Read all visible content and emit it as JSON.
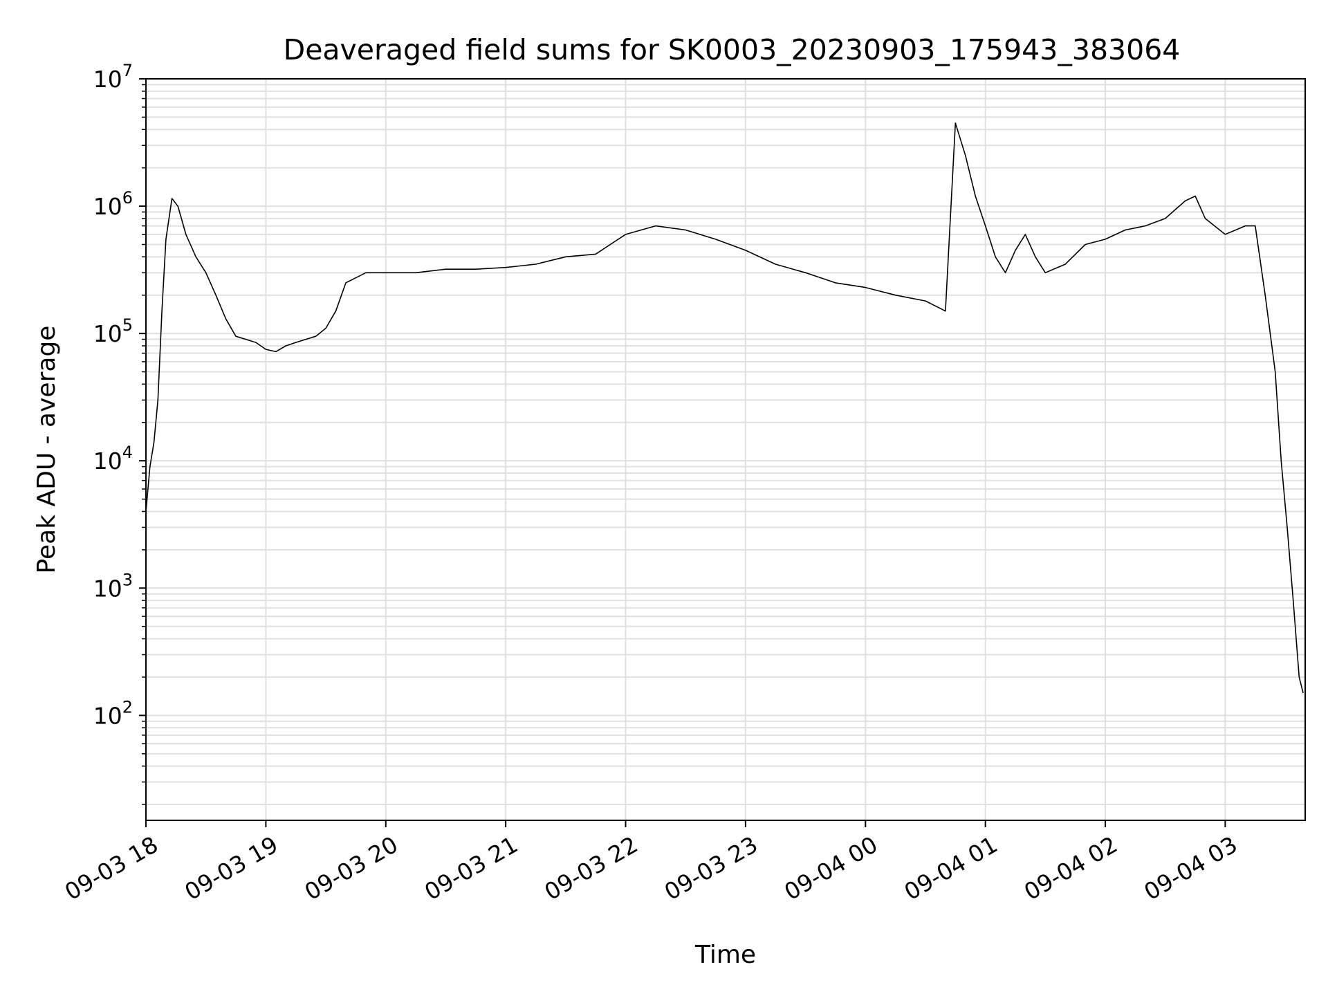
{
  "chart_data": {
    "type": "line",
    "title": "Deaveraged field sums for SK0003_20230903_175943_383064",
    "xlabel": "Time",
    "ylabel": "Peak ADU - average",
    "yscale": "log",
    "ylim": [
      15,
      10000000
    ],
    "xlim": [
      "2023-09-03 18:00",
      "2023-09-04 03:40"
    ],
    "grid": true,
    "line_color": "#000000",
    "grid_color": "#e0e0e0",
    "x_ticks": [
      {
        "label": "09-03 18",
        "value": "2023-09-03 18:00"
      },
      {
        "label": "09-03 19",
        "value": "2023-09-03 19:00"
      },
      {
        "label": "09-03 20",
        "value": "2023-09-03 20:00"
      },
      {
        "label": "09-03 21",
        "value": "2023-09-03 21:00"
      },
      {
        "label": "09-03 22",
        "value": "2023-09-03 22:00"
      },
      {
        "label": "09-03 23",
        "value": "2023-09-03 23:00"
      },
      {
        "label": "09-04 00",
        "value": "2023-09-04 00:00"
      },
      {
        "label": "09-04 01",
        "value": "2023-09-04 01:00"
      },
      {
        "label": "09-04 02",
        "value": "2023-09-04 02:00"
      },
      {
        "label": "09-04 03",
        "value": "2023-09-04 03:00"
      }
    ],
    "y_ticks": [
      {
        "base": "10",
        "exp": "2",
        "value": 100
      },
      {
        "base": "10",
        "exp": "3",
        "value": 1000
      },
      {
        "base": "10",
        "exp": "4",
        "value": 10000
      },
      {
        "base": "10",
        "exp": "5",
        "value": 100000
      },
      {
        "base": "10",
        "exp": "6",
        "value": 1000000
      },
      {
        "base": "10",
        "exp": "7",
        "value": 10000000
      }
    ],
    "series": [
      {
        "points": [
          [
            "2023-09-03 18:00",
            4000
          ],
          [
            "2023-09-03 18:02",
            9000
          ],
          [
            "2023-09-03 18:04",
            14000
          ],
          [
            "2023-09-03 18:06",
            30000
          ],
          [
            "2023-09-03 18:08",
            150000
          ],
          [
            "2023-09-03 18:10",
            550000
          ],
          [
            "2023-09-03 18:13",
            1150000
          ],
          [
            "2023-09-03 18:16",
            1000000
          ],
          [
            "2023-09-03 18:20",
            600000
          ],
          [
            "2023-09-03 18:25",
            400000
          ],
          [
            "2023-09-03 18:30",
            300000
          ],
          [
            "2023-09-03 18:35",
            200000
          ],
          [
            "2023-09-03 18:40",
            130000
          ],
          [
            "2023-09-03 18:45",
            95000
          ],
          [
            "2023-09-03 18:50",
            90000
          ],
          [
            "2023-09-03 18:55",
            85000
          ],
          [
            "2023-09-03 19:00",
            75000
          ],
          [
            "2023-09-03 19:05",
            72000
          ],
          [
            "2023-09-03 19:10",
            80000
          ],
          [
            "2023-09-03 19:15",
            85000
          ],
          [
            "2023-09-03 19:20",
            90000
          ],
          [
            "2023-09-03 19:25",
            95000
          ],
          [
            "2023-09-03 19:30",
            110000
          ],
          [
            "2023-09-03 19:35",
            150000
          ],
          [
            "2023-09-03 19:40",
            250000
          ],
          [
            "2023-09-03 19:50",
            300000
          ],
          [
            "2023-09-03 20:00",
            300000
          ],
          [
            "2023-09-03 20:15",
            300000
          ],
          [
            "2023-09-03 20:30",
            320000
          ],
          [
            "2023-09-03 20:45",
            320000
          ],
          [
            "2023-09-03 21:00",
            330000
          ],
          [
            "2023-09-03 21:15",
            350000
          ],
          [
            "2023-09-03 21:30",
            400000
          ],
          [
            "2023-09-03 21:45",
            420000
          ],
          [
            "2023-09-03 22:00",
            600000
          ],
          [
            "2023-09-03 22:15",
            700000
          ],
          [
            "2023-09-03 22:30",
            650000
          ],
          [
            "2023-09-03 22:45",
            550000
          ],
          [
            "2023-09-03 23:00",
            450000
          ],
          [
            "2023-09-03 23:15",
            350000
          ],
          [
            "2023-09-03 23:30",
            300000
          ],
          [
            "2023-09-03 23:45",
            250000
          ],
          [
            "2023-09-04 00:00",
            230000
          ],
          [
            "2023-09-04 00:15",
            200000
          ],
          [
            "2023-09-04 00:30",
            180000
          ],
          [
            "2023-09-04 00:40",
            150000
          ],
          [
            "2023-09-04 00:45",
            4500000
          ],
          [
            "2023-09-04 00:50",
            2500000
          ],
          [
            "2023-09-04 00:55",
            1200000
          ],
          [
            "2023-09-04 01:00",
            700000
          ],
          [
            "2023-09-04 01:05",
            400000
          ],
          [
            "2023-09-04 01:10",
            300000
          ],
          [
            "2023-09-04 01:15",
            450000
          ],
          [
            "2023-09-04 01:20",
            600000
          ],
          [
            "2023-09-04 01:25",
            400000
          ],
          [
            "2023-09-04 01:30",
            300000
          ],
          [
            "2023-09-04 01:40",
            350000
          ],
          [
            "2023-09-04 01:50",
            500000
          ],
          [
            "2023-09-04 02:00",
            550000
          ],
          [
            "2023-09-04 02:10",
            650000
          ],
          [
            "2023-09-04 02:20",
            700000
          ],
          [
            "2023-09-04 02:30",
            800000
          ],
          [
            "2023-09-04 02:40",
            1100000
          ],
          [
            "2023-09-04 02:45",
            1200000
          ],
          [
            "2023-09-04 02:50",
            800000
          ],
          [
            "2023-09-04 03:00",
            600000
          ],
          [
            "2023-09-04 03:10",
            700000
          ],
          [
            "2023-09-04 03:15",
            700000
          ],
          [
            "2023-09-04 03:20",
            200000
          ],
          [
            "2023-09-04 03:25",
            50000
          ],
          [
            "2023-09-04 03:28",
            10000
          ],
          [
            "2023-09-04 03:31",
            3000
          ],
          [
            "2023-09-04 03:34",
            800
          ],
          [
            "2023-09-04 03:37",
            200
          ],
          [
            "2023-09-04 03:39",
            150
          ]
        ]
      }
    ]
  }
}
